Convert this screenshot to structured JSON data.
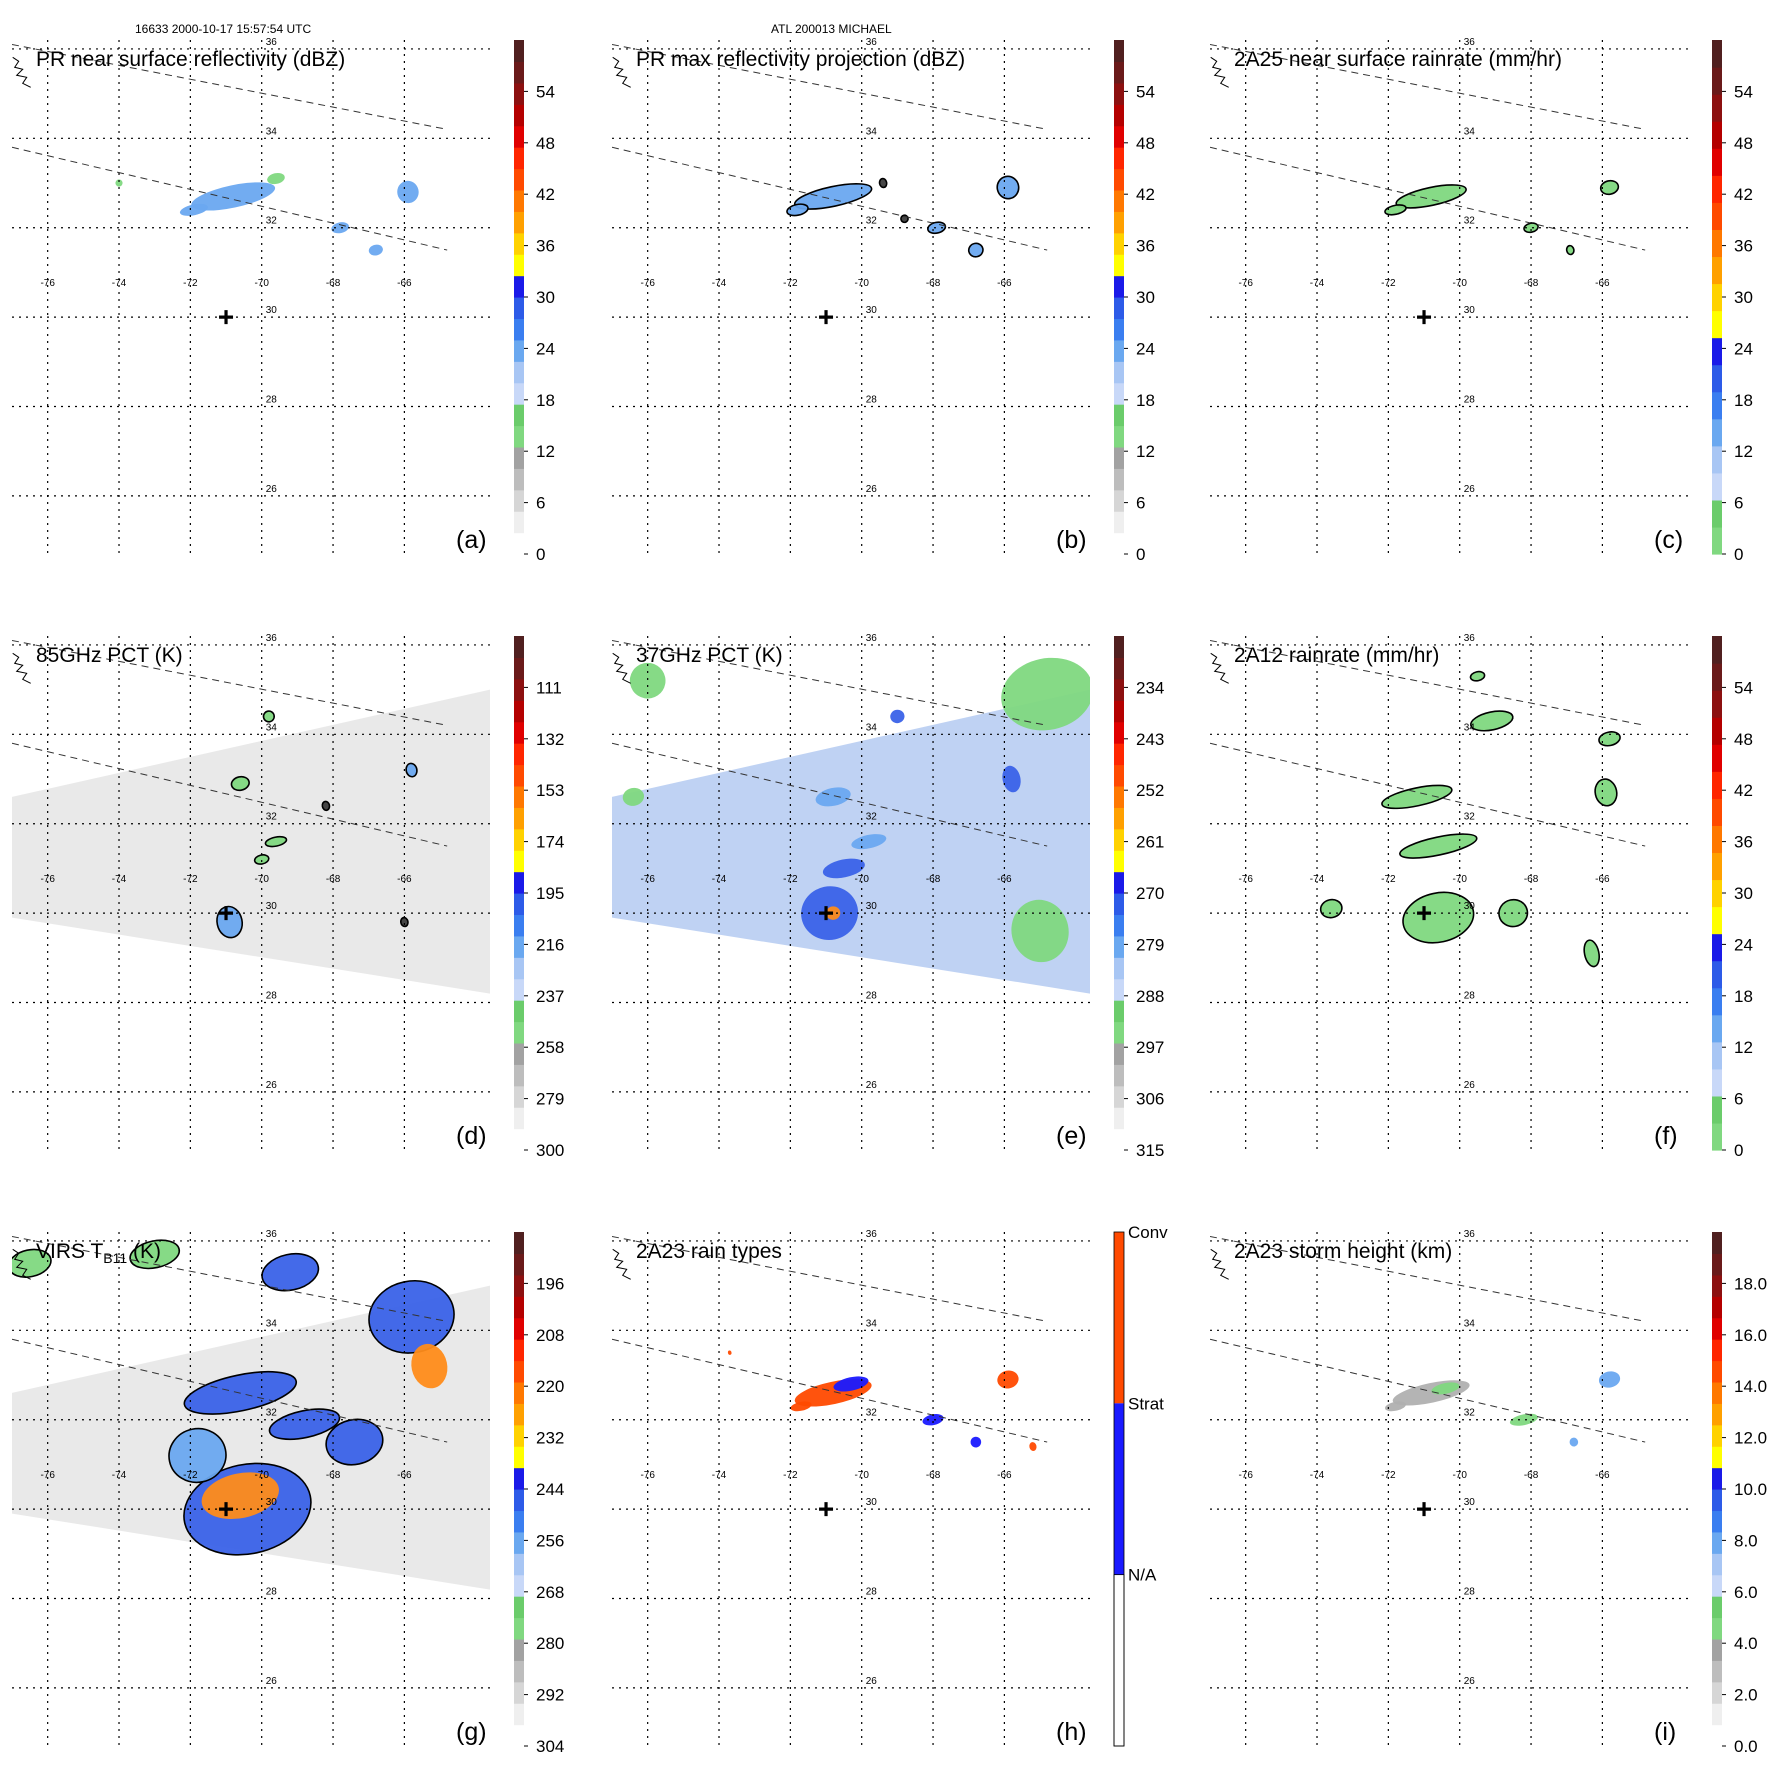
{
  "header": {
    "left": "16633 2000-10-17 15:57:54 UTC",
    "center": "ATL 200013 MICHAEL"
  },
  "colors": {
    "grid": "#000000",
    "track": "#333333",
    "swath_gray": "#e8e8e8",
    "swath_blue": "#bcd0f2",
    "rain_green": "#80d880",
    "rain_blue": "#3a62e8",
    "rain_orange": "#ff8c1a",
    "conv": "#ff4a00",
    "strat": "#1a1aff"
  },
  "chart_data": [
    {
      "id": "a",
      "type": "heatmap",
      "title": "PR near surface reflectivity (dBZ)",
      "panel_label": "(a)",
      "lon_ticks": [
        -76,
        -74,
        -72,
        -70,
        -68,
        -66
      ],
      "lat_ticks": [
        36,
        34,
        32,
        30,
        28,
        26
      ],
      "colorbar": {
        "ticks": [
          "54",
          "48",
          "42",
          "36",
          "30",
          "24",
          "18",
          "12",
          "6",
          "0"
        ],
        "palette": "dbz"
      },
      "storm_center": {
        "lon": -71,
        "lat": 30
      },
      "swath": "none",
      "features": [
        {
          "lon": -70.8,
          "lat": 32.7,
          "rlon": 1.2,
          "rlat": 0.25,
          "kind": "rain",
          "outline": false
        },
        {
          "lon": -71.9,
          "lat": 32.4,
          "rlon": 0.4,
          "rlat": 0.12,
          "kind": "rain",
          "outline": false
        },
        {
          "lon": -69.6,
          "lat": 33.1,
          "rlon": 0.25,
          "rlat": 0.12,
          "kind": "light",
          "outline": false
        },
        {
          "lon": -67.8,
          "lat": 32.0,
          "rlon": 0.25,
          "rlat": 0.12,
          "kind": "rain",
          "outline": false
        },
        {
          "lon": -65.9,
          "lat": 32.8,
          "rlon": 0.3,
          "rlat": 0.25,
          "kind": "rain",
          "outline": false
        },
        {
          "lon": -66.8,
          "lat": 31.5,
          "rlon": 0.2,
          "rlat": 0.12,
          "kind": "rain",
          "outline": false
        },
        {
          "lon": -74.0,
          "lat": 33.0,
          "rlon": 0.1,
          "rlat": 0.08,
          "kind": "light",
          "outline": false
        }
      ]
    },
    {
      "id": "b",
      "type": "heatmap",
      "title": "PR max reflectivity projection (dBZ)",
      "panel_label": "(b)",
      "lon_ticks": [
        -76,
        -74,
        -72,
        -70,
        -68,
        -66
      ],
      "lat_ticks": [
        36,
        34,
        32,
        30,
        28,
        26
      ],
      "colorbar": {
        "ticks": [
          "54",
          "48",
          "42",
          "36",
          "30",
          "24",
          "18",
          "12",
          "6",
          "0"
        ],
        "palette": "dbz"
      },
      "storm_center": {
        "lon": -71,
        "lat": 30
      },
      "swath": "none",
      "features": [
        {
          "lon": -70.8,
          "lat": 32.7,
          "rlon": 1.1,
          "rlat": 0.22,
          "kind": "rain",
          "outline": true
        },
        {
          "lon": -71.8,
          "lat": 32.4,
          "rlon": 0.3,
          "rlat": 0.12,
          "kind": "rain",
          "outline": true
        },
        {
          "lon": -67.9,
          "lat": 32.0,
          "rlon": 0.25,
          "rlat": 0.12,
          "kind": "rain",
          "outline": true
        },
        {
          "lon": -65.9,
          "lat": 32.9,
          "rlon": 0.3,
          "rlat": 0.25,
          "kind": "rain",
          "outline": true
        },
        {
          "lon": -66.8,
          "lat": 31.5,
          "rlon": 0.2,
          "rlat": 0.15,
          "kind": "rain",
          "outline": true
        },
        {
          "lon": -69.4,
          "lat": 33.0,
          "rlon": 0.1,
          "rlat": 0.1,
          "kind": "dark",
          "outline": true
        },
        {
          "lon": -68.8,
          "lat": 32.2,
          "rlon": 0.1,
          "rlat": 0.08,
          "kind": "dark",
          "outline": true
        }
      ]
    },
    {
      "id": "c",
      "type": "heatmap",
      "title": "2A25 near surface rainrate (mm/hr)",
      "panel_label": "(c)",
      "lon_ticks": [
        -76,
        -74,
        -72,
        -70,
        -68,
        -66
      ],
      "lat_ticks": [
        36,
        34,
        32,
        30,
        28,
        26
      ],
      "colorbar": {
        "ticks": [
          "54",
          "48",
          "42",
          "36",
          "30",
          "24",
          "18",
          "12",
          "6",
          "0"
        ],
        "palette": "rain"
      },
      "storm_center": {
        "lon": -71,
        "lat": 30
      },
      "swath": "none",
      "features": [
        {
          "lon": -70.8,
          "lat": 32.7,
          "rlon": 1.0,
          "rlat": 0.2,
          "kind": "light",
          "outline": true
        },
        {
          "lon": -71.8,
          "lat": 32.4,
          "rlon": 0.3,
          "rlat": 0.1,
          "kind": "light",
          "outline": true
        },
        {
          "lon": -65.8,
          "lat": 32.9,
          "rlon": 0.25,
          "rlat": 0.15,
          "kind": "light",
          "outline": true
        },
        {
          "lon": -68.0,
          "lat": 32.0,
          "rlon": 0.2,
          "rlat": 0.1,
          "kind": "light",
          "outline": true
        },
        {
          "lon": -66.9,
          "lat": 31.5,
          "rlon": 0.1,
          "rlat": 0.1,
          "kind": "light",
          "outline": true
        }
      ]
    },
    {
      "id": "d",
      "type": "heatmap",
      "title": "85GHz PCT (K)",
      "panel_label": "(d)",
      "lon_ticks": [
        -76,
        -74,
        -72,
        -70,
        -68,
        -66
      ],
      "lat_ticks": [
        36,
        34,
        32,
        30,
        28,
        26
      ],
      "colorbar": {
        "ticks": [
          "111",
          "132",
          "153",
          "174",
          "195",
          "216",
          "237",
          "258",
          "279",
          "300"
        ],
        "palette": "pct"
      },
      "storm_center": {
        "lon": -71,
        "lat": 30
      },
      "swath": "gray",
      "features": [
        {
          "lon": -70.9,
          "lat": 29.8,
          "rlon": 0.35,
          "rlat": 0.35,
          "kind": "rain",
          "outline": true
        },
        {
          "lon": -70.6,
          "lat": 32.9,
          "rlon": 0.25,
          "rlat": 0.15,
          "kind": "light",
          "outline": true
        },
        {
          "lon": -69.8,
          "lat": 34.4,
          "rlon": 0.15,
          "rlat": 0.12,
          "kind": "light",
          "outline": true
        },
        {
          "lon": -69.6,
          "lat": 31.6,
          "rlon": 0.3,
          "rlat": 0.1,
          "kind": "light",
          "outline": true
        },
        {
          "lon": -70.0,
          "lat": 31.2,
          "rlon": 0.2,
          "rlat": 0.1,
          "kind": "light",
          "outline": true
        },
        {
          "lon": -65.8,
          "lat": 33.2,
          "rlon": 0.15,
          "rlat": 0.15,
          "kind": "rain",
          "outline": true
        },
        {
          "lon": -68.2,
          "lat": 32.4,
          "rlon": 0.1,
          "rlat": 0.1,
          "kind": "dark",
          "outline": true
        },
        {
          "lon": -66.0,
          "lat": 29.8,
          "rlon": 0.1,
          "rlat": 0.1,
          "kind": "dark",
          "outline": true
        }
      ]
    },
    {
      "id": "e",
      "type": "heatmap",
      "title": "37GHz PCT (K)",
      "panel_label": "(e)",
      "lon_ticks": [
        -76,
        -74,
        -72,
        -70,
        -68,
        -66
      ],
      "lat_ticks": [
        36,
        34,
        32,
        30,
        28,
        26
      ],
      "colorbar": {
        "ticks": [
          "234",
          "243",
          "252",
          "261",
          "270",
          "279",
          "288",
          "297",
          "306",
          "315"
        ],
        "palette": "pct"
      },
      "storm_center": {
        "lon": -71,
        "lat": 30
      },
      "swath": "blue",
      "features": [
        {
          "lon": -70.9,
          "lat": 30.0,
          "rlon": 0.8,
          "rlat": 0.6,
          "kind": "heavy",
          "outline": false
        },
        {
          "lon": -70.8,
          "lat": 30.0,
          "rlon": 0.2,
          "rlat": 0.15,
          "kind": "core",
          "outline": false
        },
        {
          "lon": -70.5,
          "lat": 31.0,
          "rlon": 0.6,
          "rlat": 0.2,
          "kind": "heavy",
          "outline": false
        },
        {
          "lon": -69.8,
          "lat": 31.6,
          "rlon": 0.5,
          "rlat": 0.15,
          "kind": "rain",
          "outline": false
        },
        {
          "lon": -70.8,
          "lat": 32.6,
          "rlon": 0.5,
          "rlat": 0.2,
          "kind": "rain",
          "outline": false
        },
        {
          "lon": -69.0,
          "lat": 34.4,
          "rlon": 0.2,
          "rlat": 0.15,
          "kind": "heavy",
          "outline": false
        },
        {
          "lon": -65.8,
          "lat": 33.0,
          "rlon": 0.25,
          "rlat": 0.3,
          "kind": "heavy",
          "outline": false
        },
        {
          "lon": -64.8,
          "lat": 34.9,
          "rlon": 1.3,
          "rlat": 0.8,
          "kind": "light",
          "outline": false
        },
        {
          "lon": -65.0,
          "lat": 29.6,
          "rlon": 0.8,
          "rlat": 0.7,
          "kind": "light",
          "outline": false
        },
        {
          "lon": -76.0,
          "lat": 35.2,
          "rlon": 0.5,
          "rlat": 0.4,
          "kind": "light",
          "outline": false
        },
        {
          "lon": -76.4,
          "lat": 32.6,
          "rlon": 0.3,
          "rlat": 0.2,
          "kind": "light",
          "outline": false
        }
      ]
    },
    {
      "id": "f",
      "type": "heatmap",
      "title": "2A12 rainrate (mm/hr)",
      "panel_label": "(f)",
      "lon_ticks": [
        -76,
        -74,
        -72,
        -70,
        -68,
        -66
      ],
      "lat_ticks": [
        36,
        34,
        32,
        30,
        28,
        26
      ],
      "colorbar": {
        "ticks": [
          "54",
          "48",
          "42",
          "36",
          "30",
          "24",
          "18",
          "12",
          "6",
          "0"
        ],
        "palette": "rain"
      },
      "storm_center": {
        "lon": -71,
        "lat": 30
      },
      "swath": "none",
      "features": [
        {
          "lon": -70.6,
          "lat": 29.9,
          "rlon": 1.0,
          "rlat": 0.55,
          "kind": "light",
          "outline": true
        },
        {
          "lon": -70.6,
          "lat": 31.5,
          "rlon": 1.1,
          "rlat": 0.2,
          "kind": "light",
          "outline": true
        },
        {
          "lon": -71.2,
          "lat": 32.6,
          "rlon": 1.0,
          "rlat": 0.2,
          "kind": "light",
          "outline": true
        },
        {
          "lon": -69.1,
          "lat": 34.3,
          "rlon": 0.6,
          "rlat": 0.2,
          "kind": "light",
          "outline": true
        },
        {
          "lon": -65.9,
          "lat": 32.7,
          "rlon": 0.3,
          "rlat": 0.3,
          "kind": "light",
          "outline": true
        },
        {
          "lon": -65.8,
          "lat": 33.9,
          "rlon": 0.3,
          "rlat": 0.15,
          "kind": "light",
          "outline": true
        },
        {
          "lon": -68.5,
          "lat": 30.0,
          "rlon": 0.4,
          "rlat": 0.3,
          "kind": "light",
          "outline": true
        },
        {
          "lon": -73.6,
          "lat": 30.1,
          "rlon": 0.3,
          "rlat": 0.2,
          "kind": "light",
          "outline": true
        },
        {
          "lon": -66.3,
          "lat": 29.1,
          "rlon": 0.2,
          "rlat": 0.3,
          "kind": "light",
          "outline": true
        },
        {
          "lon": -69.5,
          "lat": 35.3,
          "rlon": 0.2,
          "rlat": 0.1,
          "kind": "light",
          "outline": true
        }
      ]
    },
    {
      "id": "g",
      "type": "heatmap",
      "title": "VIRS TB11 (K)",
      "panel_label": "(g)",
      "title_prefix": "VIRS T",
      "title_sub": "B11",
      "title_suffix": " (K)",
      "lon_ticks": [
        -76,
        -74,
        -72,
        -70,
        -68,
        -66
      ],
      "lat_ticks": [
        36,
        34,
        32,
        30,
        28,
        26
      ],
      "colorbar": {
        "ticks": [
          "196",
          "208",
          "220",
          "232",
          "244",
          "256",
          "268",
          "280",
          "292",
          "304"
        ],
        "palette": "virs"
      },
      "storm_center": {
        "lon": -71,
        "lat": 30
      },
      "swath": "gray",
      "features": [
        {
          "lon": -70.4,
          "lat": 30.0,
          "rlon": 1.8,
          "rlat": 1.0,
          "kind": "heavy",
          "outline": true
        },
        {
          "lon": -70.6,
          "lat": 30.3,
          "rlon": 1.1,
          "rlat": 0.5,
          "kind": "core",
          "outline": false
        },
        {
          "lon": -70.6,
          "lat": 32.6,
          "rlon": 1.6,
          "rlat": 0.4,
          "kind": "heavy",
          "outline": true
        },
        {
          "lon": -69.2,
          "lat": 35.3,
          "rlon": 0.8,
          "rlat": 0.4,
          "kind": "heavy",
          "outline": true
        },
        {
          "lon": -68.8,
          "lat": 31.9,
          "rlon": 1.0,
          "rlat": 0.3,
          "kind": "heavy",
          "outline": true
        },
        {
          "lon": -65.8,
          "lat": 34.3,
          "rlon": 1.2,
          "rlat": 0.8,
          "kind": "heavy",
          "outline": true
        },
        {
          "lon": -65.3,
          "lat": 33.2,
          "rlon": 0.5,
          "rlat": 0.5,
          "kind": "core",
          "outline": false
        },
        {
          "lon": -67.4,
          "lat": 31.5,
          "rlon": 0.8,
          "rlat": 0.5,
          "kind": "heavy",
          "outline": true
        },
        {
          "lon": -71.8,
          "lat": 31.2,
          "rlon": 0.8,
          "rlat": 0.6,
          "kind": "rain",
          "outline": true
        },
        {
          "lon": -73.0,
          "lat": 35.7,
          "rlon": 0.7,
          "rlat": 0.3,
          "kind": "light",
          "outline": true
        },
        {
          "lon": -76.5,
          "lat": 35.5,
          "rlon": 0.6,
          "rlat": 0.3,
          "kind": "light",
          "outline": true
        }
      ]
    },
    {
      "id": "h",
      "type": "heatmap",
      "title": "2A23 rain types",
      "panel_label": "(h)",
      "lon_ticks": [
        -76,
        -74,
        -72,
        -70,
        -68,
        -66
      ],
      "lat_ticks": [
        36,
        34,
        32,
        30,
        28,
        26
      ],
      "colorbar": {
        "ticks": [
          "Conv",
          "Strat",
          "N/A"
        ],
        "palette": "types"
      },
      "storm_center": {
        "lon": -71,
        "lat": 30
      },
      "swath": "none",
      "features": [
        {
          "lon": -70.8,
          "lat": 32.6,
          "rlon": 1.1,
          "rlat": 0.25,
          "kind": "conv",
          "outline": false
        },
        {
          "lon": -70.3,
          "lat": 32.8,
          "rlon": 0.5,
          "rlat": 0.15,
          "kind": "strat",
          "outline": false
        },
        {
          "lon": -71.7,
          "lat": 32.3,
          "rlon": 0.3,
          "rlat": 0.1,
          "kind": "conv",
          "outline": false
        },
        {
          "lon": -68.0,
          "lat": 32.0,
          "rlon": 0.3,
          "rlat": 0.12,
          "kind": "strat",
          "outline": false
        },
        {
          "lon": -65.9,
          "lat": 32.9,
          "rlon": 0.3,
          "rlat": 0.2,
          "kind": "conv",
          "outline": false
        },
        {
          "lon": -66.8,
          "lat": 31.5,
          "rlon": 0.15,
          "rlat": 0.12,
          "kind": "strat",
          "outline": false
        },
        {
          "lon": -65.2,
          "lat": 31.4,
          "rlon": 0.1,
          "rlat": 0.1,
          "kind": "conv",
          "outline": false
        },
        {
          "lon": -73.7,
          "lat": 33.5,
          "rlon": 0.05,
          "rlat": 0.05,
          "kind": "conv",
          "outline": false
        }
      ]
    },
    {
      "id": "i",
      "type": "heatmap",
      "title": "2A23 storm height (km)",
      "panel_label": "(i)",
      "lon_ticks": [
        -76,
        -74,
        -72,
        -70,
        -68,
        -66
      ],
      "lat_ticks": [
        36,
        34,
        32,
        30,
        28,
        26
      ],
      "colorbar": {
        "ticks": [
          "18.0",
          "16.0",
          "14.0",
          "12.0",
          "10.0",
          "8.0",
          "6.0",
          "4.0",
          "2.0",
          "0.0"
        ],
        "palette": "height"
      },
      "storm_center": {
        "lon": -71,
        "lat": 30
      },
      "swath": "none",
      "features": [
        {
          "lon": -70.8,
          "lat": 32.6,
          "rlon": 1.1,
          "rlat": 0.22,
          "kind": "gray",
          "outline": false
        },
        {
          "lon": -70.4,
          "lat": 32.7,
          "rlon": 0.4,
          "rlat": 0.12,
          "kind": "light",
          "outline": false
        },
        {
          "lon": -65.8,
          "lat": 32.9,
          "rlon": 0.3,
          "rlat": 0.18,
          "kind": "rain",
          "outline": false
        },
        {
          "lon": -68.2,
          "lat": 32.0,
          "rlon": 0.4,
          "rlat": 0.12,
          "kind": "light",
          "outline": false
        },
        {
          "lon": -66.8,
          "lat": 31.5,
          "rlon": 0.12,
          "rlat": 0.1,
          "kind": "rain",
          "outline": false
        },
        {
          "lon": -71.8,
          "lat": 32.3,
          "rlon": 0.3,
          "rlat": 0.1,
          "kind": "gray",
          "outline": false
        }
      ]
    }
  ]
}
